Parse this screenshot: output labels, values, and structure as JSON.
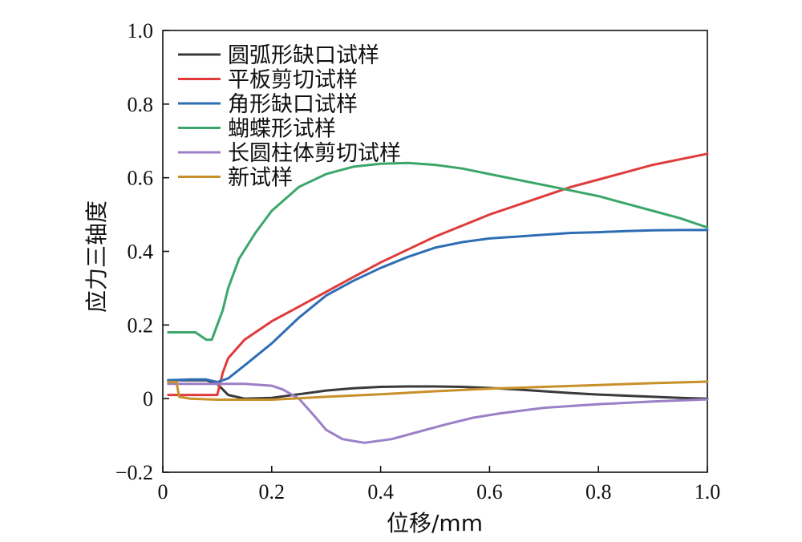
{
  "chart_data": {
    "type": "line",
    "title": "",
    "xlabel": "位移/mm",
    "ylabel": "应力三轴度",
    "xlim": [
      0,
      1.0
    ],
    "ylim": [
      -0.2,
      1.0
    ],
    "xticks": [
      0,
      0.2,
      0.4,
      0.6,
      0.8,
      1.0
    ],
    "xtick_labels": [
      "0",
      "0.2",
      "0.4",
      "0.6",
      "0.8",
      "1.0"
    ],
    "yticks": [
      -0.2,
      0,
      0.2,
      0.4,
      0.6,
      0.8,
      1.0
    ],
    "ytick_labels": [
      "−0.2",
      "0",
      "0.2",
      "0.4",
      "0.6",
      "0.8",
      "1.0"
    ],
    "grid": false,
    "legend_position": "top-left",
    "series": [
      {
        "name": "圆弧形缺口试样",
        "color": "#3a3a3a",
        "x": [
          0.01,
          0.08,
          0.1,
          0.12,
          0.15,
          0.2,
          0.25,
          0.3,
          0.35,
          0.4,
          0.45,
          0.5,
          0.55,
          0.6,
          0.65,
          0.7,
          0.75,
          0.8,
          0.85,
          0.9,
          0.95,
          1.0
        ],
        "y": [
          0.05,
          0.05,
          0.04,
          0.01,
          0.0,
          0.002,
          0.012,
          0.022,
          0.028,
          0.032,
          0.033,
          0.033,
          0.032,
          0.029,
          0.025,
          0.02,
          0.015,
          0.011,
          0.008,
          0.005,
          0.002,
          0.0
        ]
      },
      {
        "name": "平板剪切试样",
        "color": "#e03b3b",
        "x": [
          0.01,
          0.09,
          0.1,
          0.11,
          0.12,
          0.15,
          0.2,
          0.25,
          0.3,
          0.35,
          0.4,
          0.45,
          0.5,
          0.55,
          0.6,
          0.65,
          0.7,
          0.75,
          0.8,
          0.85,
          0.9,
          0.95,
          1.0
        ],
        "y": [
          0.01,
          0.01,
          0.01,
          0.07,
          0.11,
          0.16,
          0.21,
          0.25,
          0.29,
          0.33,
          0.37,
          0.405,
          0.44,
          0.47,
          0.5,
          0.525,
          0.55,
          0.575,
          0.595,
          0.615,
          0.635,
          0.65,
          0.665
        ]
      },
      {
        "name": "角形缺口试样",
        "color": "#2e6db4",
        "x": [
          0.01,
          0.05,
          0.08,
          0.1,
          0.12,
          0.15,
          0.2,
          0.25,
          0.3,
          0.35,
          0.4,
          0.45,
          0.5,
          0.55,
          0.6,
          0.65,
          0.7,
          0.75,
          0.8,
          0.85,
          0.9,
          0.95,
          1.0
        ],
        "y": [
          0.05,
          0.052,
          0.052,
          0.045,
          0.055,
          0.09,
          0.15,
          0.22,
          0.28,
          0.32,
          0.355,
          0.385,
          0.41,
          0.425,
          0.435,
          0.44,
          0.445,
          0.45,
          0.452,
          0.455,
          0.457,
          0.458,
          0.458
        ]
      },
      {
        "name": "蝴蝶形试样",
        "color": "#3ba66a",
        "x": [
          0.01,
          0.06,
          0.08,
          0.09,
          0.1,
          0.11,
          0.12,
          0.14,
          0.17,
          0.2,
          0.25,
          0.3,
          0.35,
          0.4,
          0.45,
          0.5,
          0.55,
          0.6,
          0.65,
          0.7,
          0.75,
          0.8,
          0.85,
          0.9,
          0.95,
          1.0
        ],
        "y": [
          0.18,
          0.18,
          0.16,
          0.16,
          0.2,
          0.24,
          0.3,
          0.38,
          0.45,
          0.51,
          0.575,
          0.61,
          0.63,
          0.638,
          0.64,
          0.635,
          0.625,
          0.61,
          0.595,
          0.58,
          0.565,
          0.55,
          0.53,
          0.51,
          0.49,
          0.465
        ]
      },
      {
        "name": "长圆柱体剪切试样",
        "color": "#9b7fc7",
        "x": [
          0.01,
          0.1,
          0.15,
          0.2,
          0.22,
          0.25,
          0.28,
          0.3,
          0.33,
          0.37,
          0.42,
          0.47,
          0.52,
          0.57,
          0.62,
          0.7,
          0.8,
          0.9,
          1.0
        ],
        "y": [
          0.04,
          0.04,
          0.04,
          0.035,
          0.025,
          0.0,
          -0.05,
          -0.085,
          -0.11,
          -0.12,
          -0.11,
          -0.09,
          -0.07,
          -0.052,
          -0.04,
          -0.025,
          -0.015,
          -0.008,
          -0.002
        ]
      },
      {
        "name": "新试样",
        "color": "#c8902a",
        "x": [
          0.01,
          0.025,
          0.03,
          0.05,
          0.1,
          0.2,
          0.3,
          0.4,
          0.5,
          0.6,
          0.7,
          0.8,
          0.9,
          1.0
        ],
        "y": [
          0.045,
          0.045,
          0.005,
          0.0,
          -0.003,
          -0.003,
          0.005,
          0.012,
          0.02,
          0.027,
          0.032,
          0.037,
          0.042,
          0.046
        ]
      }
    ]
  }
}
